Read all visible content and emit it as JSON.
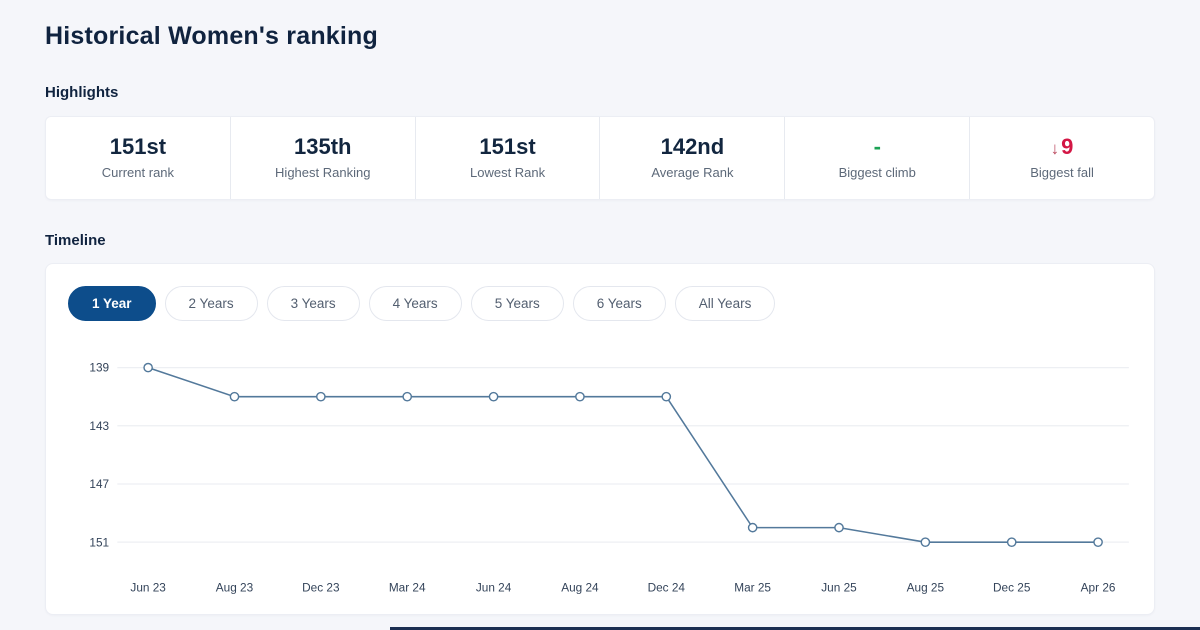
{
  "page": {
    "title": "Historical Women's ranking"
  },
  "highlights": {
    "heading": "Highlights",
    "items": [
      {
        "value": "151st",
        "label": "Current rank"
      },
      {
        "value": "135th",
        "label": "Highest Ranking"
      },
      {
        "value": "151st",
        "label": "Lowest Rank"
      },
      {
        "value": "142nd",
        "label": "Average Rank"
      },
      {
        "value": "-",
        "label": "Biggest climb",
        "value_color": "#1ba254"
      },
      {
        "value": "9",
        "label": "Biggest fall",
        "arrow": "↓",
        "value_color": "#d31745",
        "arrow_color": "#bc4a60"
      }
    ]
  },
  "timeline": {
    "heading": "Timeline",
    "tabs": [
      {
        "label": "1 Year",
        "active": true
      },
      {
        "label": "2 Years",
        "active": false
      },
      {
        "label": "3 Years",
        "active": false
      },
      {
        "label": "4 Years",
        "active": false
      },
      {
        "label": "5 Years",
        "active": false
      },
      {
        "label": "6 Years",
        "active": false
      },
      {
        "label": "All Years",
        "active": false
      }
    ],
    "active_tab_color": "#0d4d8b"
  },
  "chart_data": {
    "type": "line",
    "title": "",
    "xlabel": "",
    "ylabel": "",
    "x": [
      "Jun 23",
      "Aug 23",
      "Dec 23",
      "Mar 24",
      "Jun 24",
      "Aug 24",
      "Dec 24",
      "Mar 25",
      "Jun 25",
      "Aug 25",
      "Dec 25",
      "Apr 26"
    ],
    "values": [
      139,
      141,
      141,
      141,
      141,
      141,
      141,
      150,
      150,
      151,
      151,
      151
    ],
    "y_ticks": [
      139,
      143,
      147,
      151
    ],
    "y_axis_reversed": true,
    "grid": true,
    "legend": "none",
    "line_color": "#53799b",
    "marker": "open-circle",
    "marker_fill": "#ffffff",
    "grid_color": "#edeff3",
    "tick_color": "#34445a"
  },
  "colors": {
    "page_background": "#f5f6fa",
    "card_background": "#ffffff",
    "title_navy": "#10233f",
    "stat_label_gray": "#5d6979",
    "bottom_strip": "#1c2f52"
  }
}
